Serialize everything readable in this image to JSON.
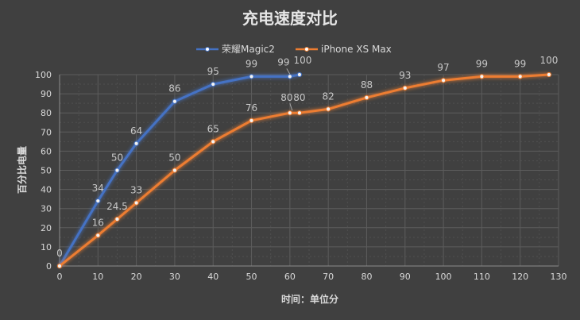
{
  "chart_data": {
    "type": "line",
    "title": "充电速度对比",
    "xlabel": "时间：单位分",
    "ylabel": "百分比电量",
    "xlim": [
      0,
      130
    ],
    "ylim": [
      0,
      100
    ],
    "x_ticks": [
      0,
      10,
      20,
      30,
      40,
      50,
      60,
      70,
      80,
      90,
      100,
      110,
      120,
      130
    ],
    "y_ticks": [
      0,
      10,
      20,
      30,
      40,
      50,
      60,
      70,
      80,
      90,
      100
    ],
    "grid": true,
    "legend_position": "top-center",
    "series": [
      {
        "name": "荣耀Magic2",
        "color": "#4472c4",
        "x": [
          0,
          10,
          15,
          20,
          30,
          40,
          50,
          60,
          62.5
        ],
        "y": [
          0,
          34,
          50,
          64,
          86,
          95,
          99,
          99,
          100
        ],
        "labels": [
          "0",
          "34",
          "50",
          "64",
          "86",
          "95",
          "99",
          "99",
          "100"
        ]
      },
      {
        "name": "iPhone XS Max",
        "color": "#ed7d31",
        "x": [
          0,
          10,
          15,
          20,
          30,
          40,
          50,
          60,
          62.5,
          70,
          80,
          90,
          100,
          110,
          120,
          127.5
        ],
        "y": [
          0,
          16,
          24.5,
          33,
          50,
          65,
          76,
          80,
          80,
          82,
          88,
          93,
          97,
          99,
          99,
          100
        ],
        "labels": [
          "",
          "16",
          "24.5",
          "33",
          "50",
          "65",
          "76",
          "80",
          "80",
          "82",
          "88",
          "93",
          "97",
          "99",
          "99",
          "100"
        ]
      }
    ]
  }
}
